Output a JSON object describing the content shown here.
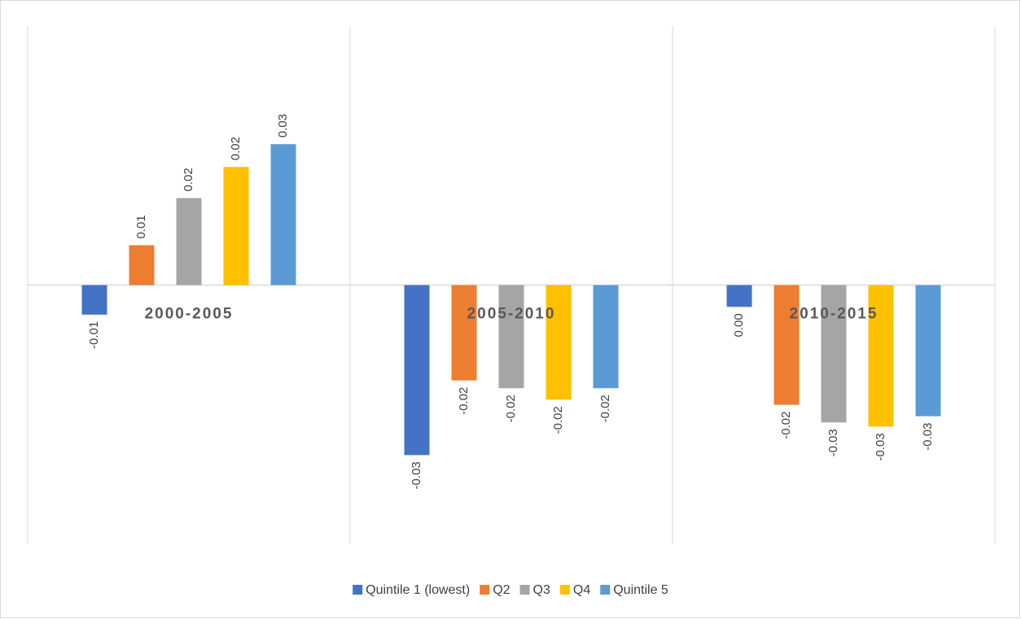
{
  "chart_data": {
    "type": "bar",
    "categories": [
      "2000-2005",
      "2005-2010",
      "2010-2015"
    ],
    "series": [
      {
        "name": "Quintile 1 (lowest)",
        "color": "#4472c4",
        "values": [
          -0.0057,
          -0.0328,
          -0.0042
        ],
        "value_labels": [
          "-0.01",
          "-0.03",
          "0.00"
        ]
      },
      {
        "name": "Q2",
        "color": "#ed7d31",
        "values": [
          0.0077,
          -0.0184,
          -0.0231
        ],
        "value_labels": [
          "0.01",
          "-0.02",
          "-0.02"
        ]
      },
      {
        "name": "Q3",
        "color": "#a5a5a5",
        "values": [
          0.0168,
          -0.0199,
          -0.0265
        ],
        "value_labels": [
          "0.02",
          "-0.02",
          "-0.03"
        ]
      },
      {
        "name": "Q4",
        "color": "#ffc000",
        "values": [
          0.0228,
          -0.0221,
          -0.0273
        ],
        "value_labels": [
          "0.02",
          "-0.02",
          "-0.03"
        ]
      },
      {
        "name": "Quintile 5",
        "color": "#5b9bd5",
        "values": [
          0.0272,
          -0.0199,
          -0.0253
        ],
        "value_labels": [
          "0.03",
          "-0.02",
          "-0.03"
        ]
      }
    ],
    "ylim": [
      -0.05,
      0.05
    ],
    "legend": "bottom"
  }
}
